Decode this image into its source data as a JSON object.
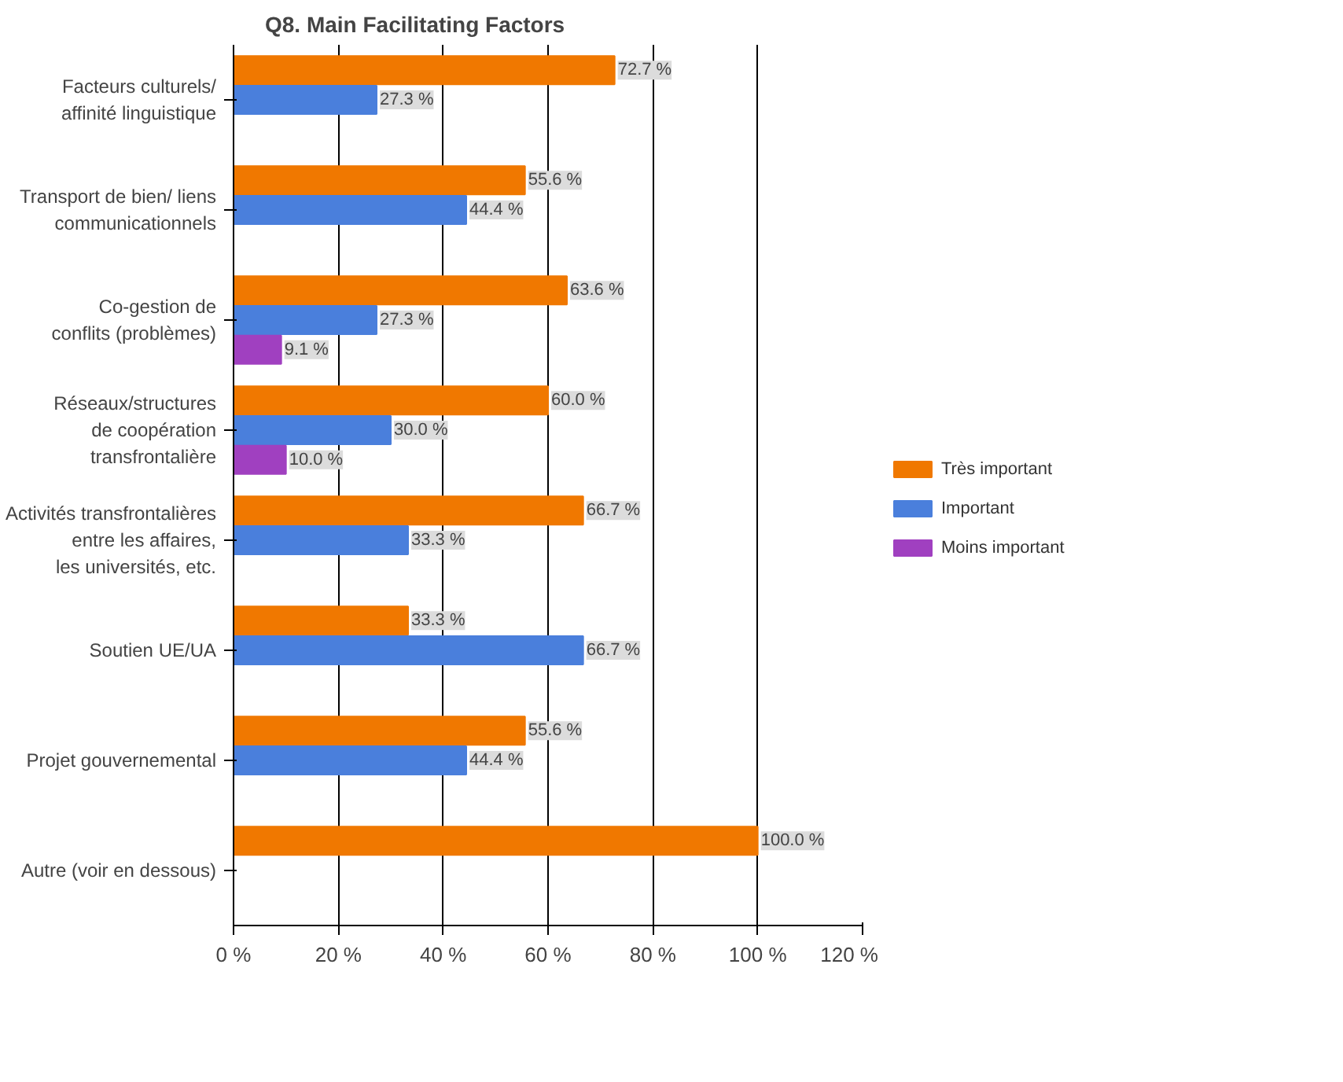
{
  "chart_data": {
    "type": "bar",
    "orientation": "horizontal",
    "title": "Q8. Main Facilitating Factors",
    "categories": [
      "Facteurs culturels/\naffinité linguistique",
      "Transport de bien/ liens\ncommunicationnels",
      "Co-gestion de\nconflits (problèmes)",
      "Réseaux/structures\nde coopération\ntransfrontalière",
      "Activités transfrontalières\nentre les affaires,\nles universités, etc.",
      "Soutien UE/UA",
      "Projet gouvernemental",
      "Autre (voir en dessous)"
    ],
    "series": [
      {
        "name": "Très important",
        "color": "#f07800",
        "values": [
          72.7,
          55.6,
          63.6,
          60.0,
          66.7,
          33.3,
          55.6,
          100.0
        ],
        "value_labels": [
          "72.7 %",
          "55.6 %",
          "63.6 %",
          "60.0 %",
          "66.7 %",
          "33.3 %",
          "55.6 %",
          "100.0 %"
        ]
      },
      {
        "name": "Important",
        "color": "#4a7fdc",
        "values": [
          27.3,
          44.4,
          27.3,
          30.0,
          33.3,
          66.7,
          44.4,
          null
        ],
        "value_labels": [
          "27.3 %",
          "44.4 %",
          "27.3 %",
          "30.0 %",
          "33.3 %",
          "66.7 %",
          "44.4 %",
          null
        ]
      },
      {
        "name": "Moins important",
        "color": "#a040c0",
        "values": [
          null,
          null,
          9.1,
          10.0,
          null,
          null,
          null,
          null
        ],
        "value_labels": [
          null,
          null,
          "9.1 %",
          "10.0 %",
          null,
          null,
          null,
          null
        ]
      }
    ],
    "xlim": [
      0,
      120
    ],
    "xticks": [
      {
        "value": 0,
        "label": "0 %"
      },
      {
        "value": 20,
        "label": "20 %"
      },
      {
        "value": 40,
        "label": "40 %"
      },
      {
        "value": 60,
        "label": "60 %"
      },
      {
        "value": 80,
        "label": "80 %"
      },
      {
        "value": 100,
        "label": "100 %"
      },
      {
        "value": 120,
        "label": "120 %"
      }
    ],
    "grid": "x",
    "legend": "right"
  }
}
